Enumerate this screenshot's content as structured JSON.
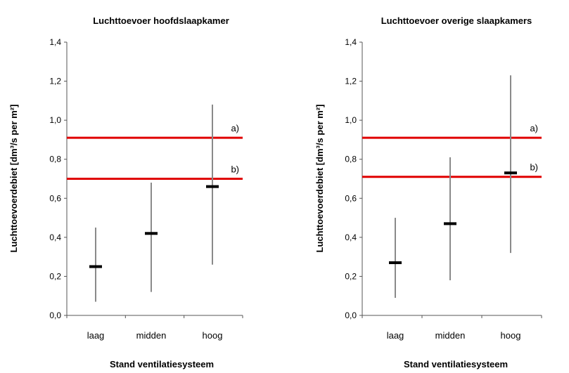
{
  "chart_data": [
    {
      "type": "scatter",
      "title": "Luchttoevoer hoofdslaapkamer",
      "xlabel": "Stand ventilatiesysteem",
      "ylabel": "Luchttoevoerdebiet [dm³/s per m²]",
      "categories": [
        "laag",
        "midden",
        "hoog"
      ],
      "ylim": [
        0,
        1.4
      ],
      "yticks": [
        "0,0",
        "0,2",
        "0,4",
        "0,6",
        "0,8",
        "1,0",
        "1,2",
        "1,4"
      ],
      "series": [
        {
          "median": [
            0.25,
            0.42,
            0.66
          ],
          "min": [
            0.07,
            0.12,
            0.26
          ],
          "max": [
            0.45,
            0.68,
            1.08
          ]
        }
      ],
      "reference_lines": [
        {
          "label": "a)",
          "value": 0.91,
          "color": "#e00000"
        },
        {
          "label": "b)",
          "value": 0.7,
          "color": "#e00000"
        }
      ],
      "grid": false,
      "legend": "none"
    },
    {
      "type": "scatter",
      "title": "Luchttoevoer overige slaapkamers",
      "xlabel": "Stand ventilatiesysteem",
      "ylabel": "Luchttoevoerdebiet [dm³/s per m²]",
      "categories": [
        "laag",
        "midden",
        "hoog"
      ],
      "ylim": [
        0,
        1.4
      ],
      "yticks": [
        "0,0",
        "0,2",
        "0,4",
        "0,6",
        "0,8",
        "1,0",
        "1,2",
        "1,4"
      ],
      "series": [
        {
          "median": [
            0.27,
            0.47,
            0.73
          ],
          "min": [
            0.09,
            0.18,
            0.32
          ],
          "max": [
            0.5,
            0.81,
            1.23
          ]
        }
      ],
      "reference_lines": [
        {
          "label": "a)",
          "value": 0.91,
          "color": "#e00000"
        },
        {
          "label": "b)",
          "value": 0.71,
          "color": "#e00000"
        }
      ],
      "grid": false,
      "legend": "none"
    }
  ]
}
